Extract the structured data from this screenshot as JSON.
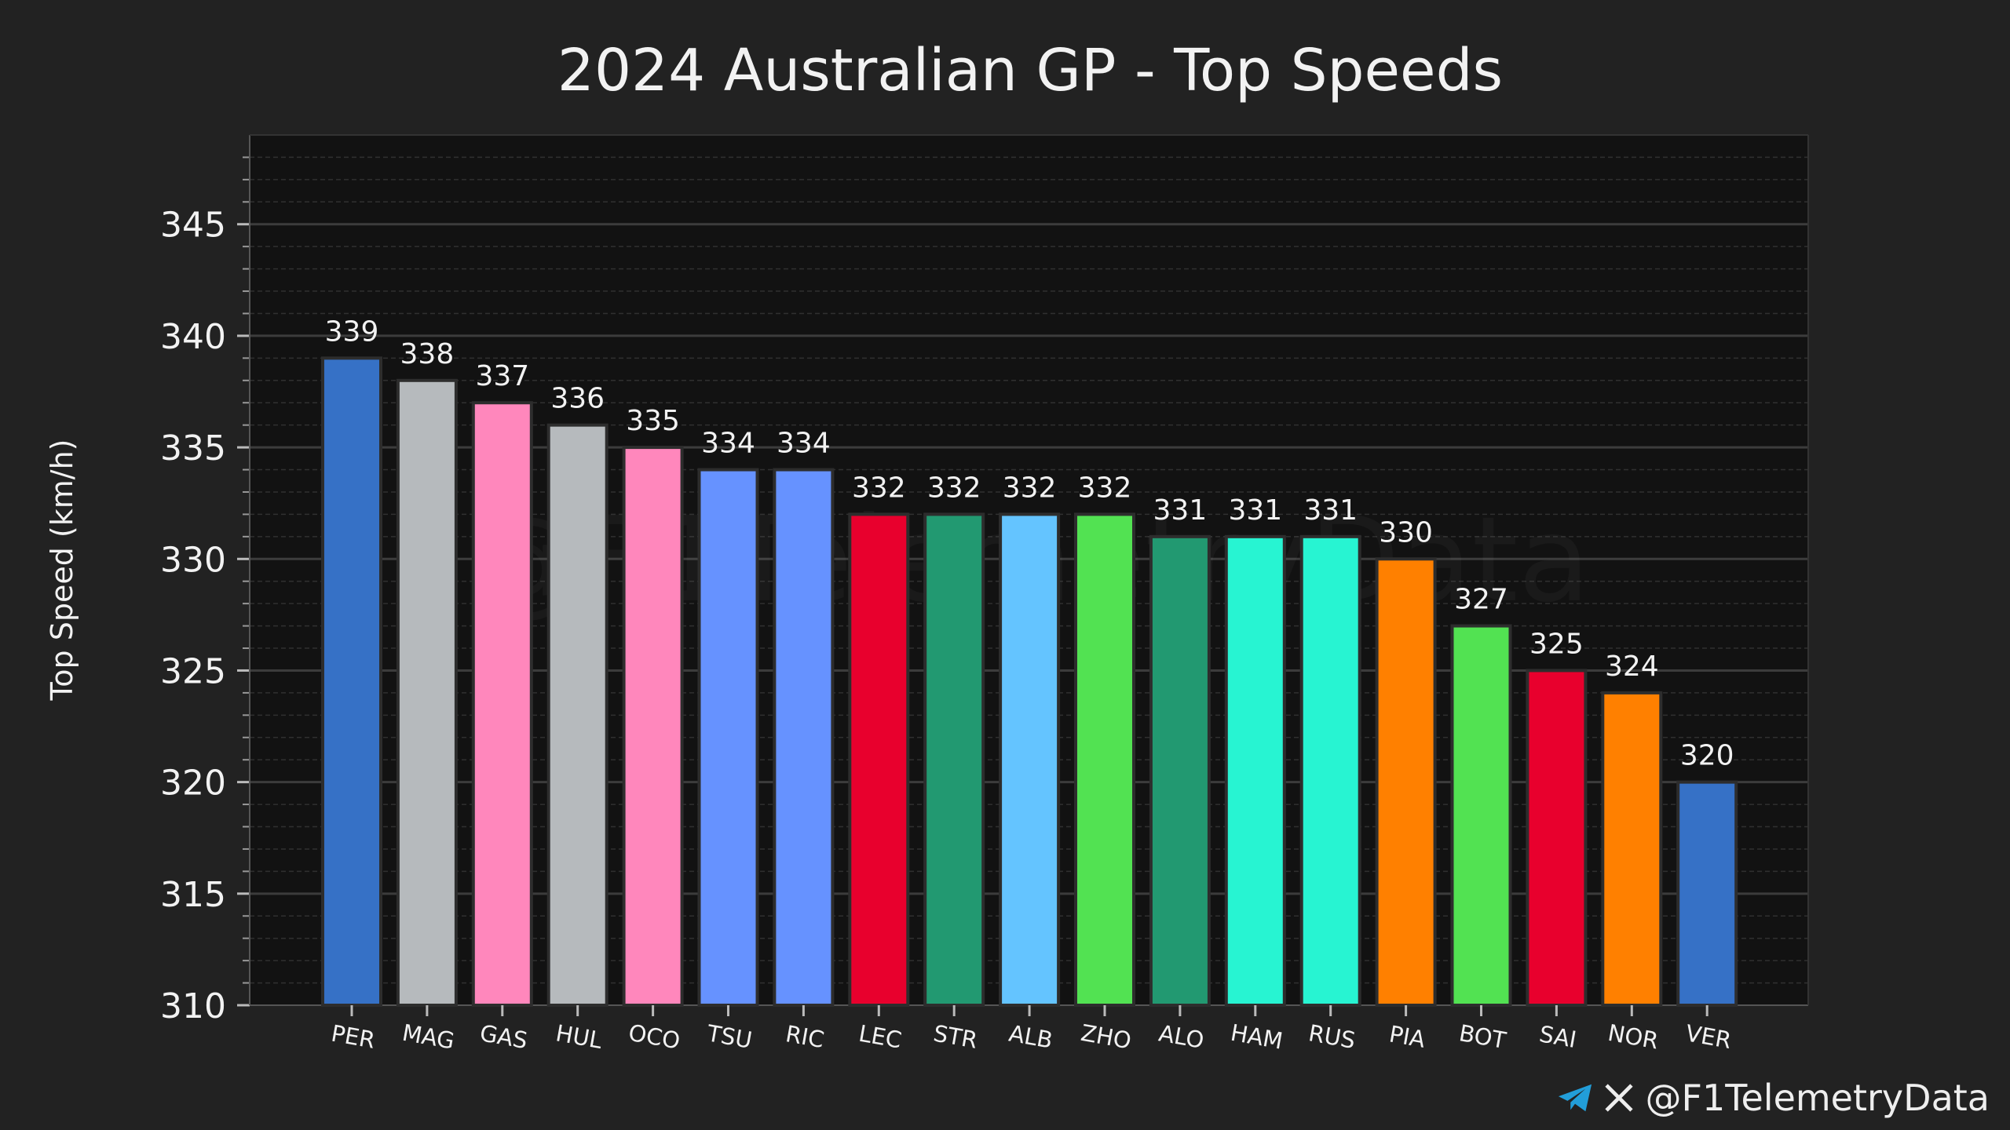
{
  "chart_data": {
    "type": "bar",
    "title": "2024 Australian GP - Top Speeds",
    "xlabel": "",
    "ylabel": "Top Speed (km/h)",
    "ylim": [
      310,
      349
    ],
    "yticks": [
      310,
      315,
      320,
      325,
      330,
      335,
      340,
      345
    ],
    "grid": true,
    "categories": [
      "PER",
      "MAG",
      "GAS",
      "HUL",
      "OCO",
      "TSU",
      "RIC",
      "LEC",
      "STR",
      "ALB",
      "ZHO",
      "ALO",
      "HAM",
      "RUS",
      "PIA",
      "BOT",
      "SAI",
      "NOR",
      "VER"
    ],
    "values": [
      339,
      338,
      337,
      336,
      335,
      334,
      334,
      332,
      332,
      332,
      332,
      331,
      331,
      331,
      330,
      327,
      325,
      324,
      320
    ],
    "colors": [
      "#3671C6",
      "#B6BABD",
      "#FF87BC",
      "#B6BABD",
      "#FF87BC",
      "#6692FF",
      "#6692FF",
      "#E8002D",
      "#229971",
      "#64C4FF",
      "#52E252",
      "#229971",
      "#27F4D2",
      "#27F4D2",
      "#FF8000",
      "#52E252",
      "#E8002D",
      "#FF8000",
      "#3671C6"
    ]
  },
  "watermark": "@F1TelemetryData",
  "footer": {
    "handle": "@F1TelemetryData",
    "icons": [
      "telegram-icon",
      "x-icon"
    ],
    "telegram_color": "#229ED9"
  }
}
